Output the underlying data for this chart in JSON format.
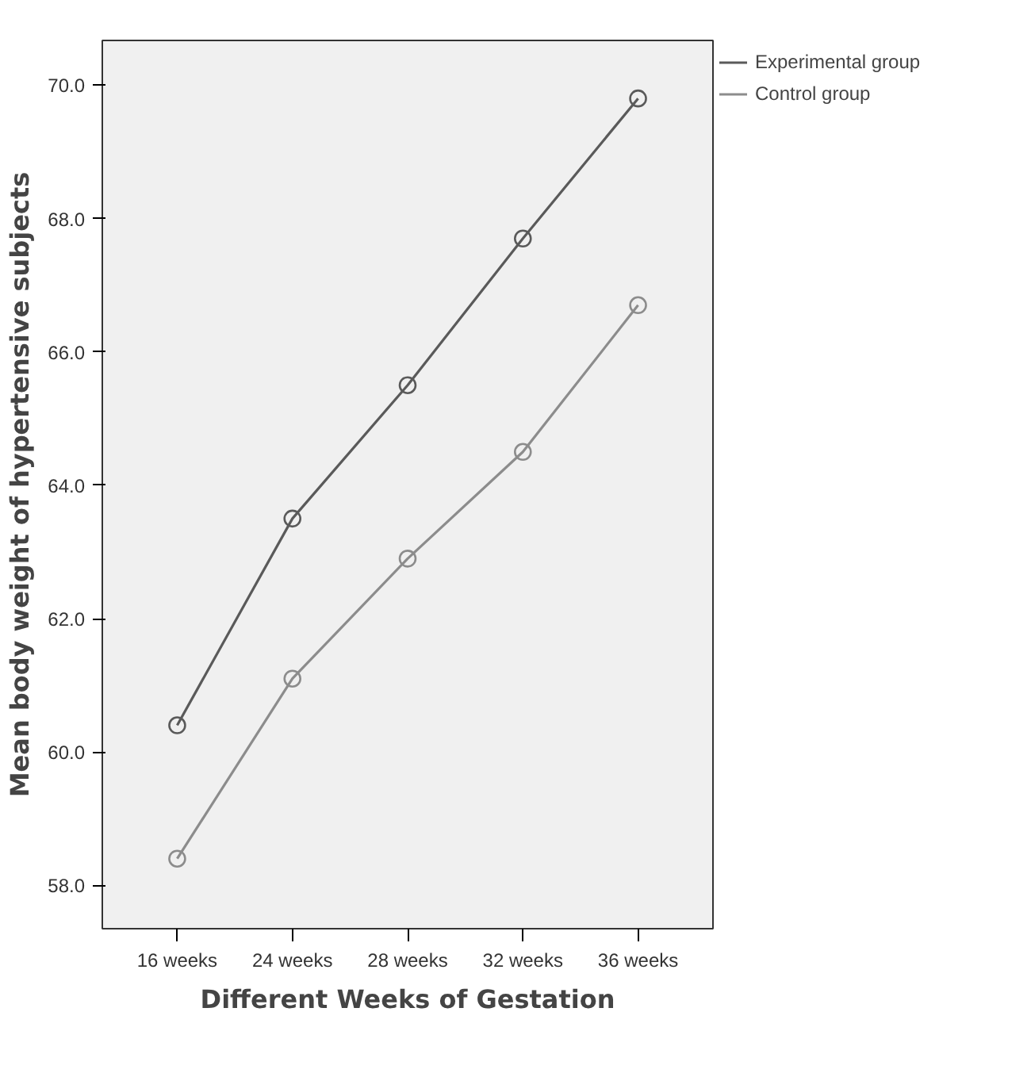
{
  "chart_data": {
    "type": "line",
    "xlabel": "Different Weeks of Gestation",
    "ylabel": "Mean body weight of hypertensive subjects",
    "categories": [
      "16 weeks",
      "24 weeks",
      "28 weeks",
      "32 weeks",
      "36 weeks"
    ],
    "series": [
      {
        "name": "Experimental group",
        "color": "#5a5a5a",
        "values": [
          60.4,
          63.5,
          65.5,
          67.7,
          69.8
        ]
      },
      {
        "name": "Control group",
        "color": "#8c8c8c",
        "values": [
          58.4,
          61.1,
          62.9,
          64.5,
          66.7
        ]
      }
    ],
    "ylim": [
      57.35,
      70.67
    ],
    "yticks": [
      {
        "value": 58,
        "label": "58.0"
      },
      {
        "value": 60,
        "label": "60.0"
      },
      {
        "value": 62,
        "label": "62.0"
      },
      {
        "value": 64,
        "label": "64.0"
      },
      {
        "value": 66,
        "label": "66.0"
      },
      {
        "value": 68,
        "label": "68.0"
      },
      {
        "value": 70,
        "label": "70.0"
      }
    ],
    "grid": false,
    "legend": "top right",
    "marker": "circle",
    "line_style": "solid"
  }
}
